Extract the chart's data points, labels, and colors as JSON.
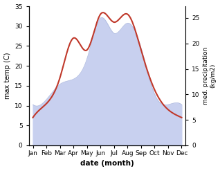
{
  "months": [
    "Jan",
    "Feb",
    "Mar",
    "Apr",
    "May",
    "Jun",
    "Jul",
    "Aug",
    "Sep",
    "Oct",
    "Nov",
    "Dec"
  ],
  "temperature": [
    7,
    10.5,
    17,
    27,
    24,
    33,
    31,
    33,
    24,
    14,
    9,
    7
  ],
  "precipitation": [
    8,
    9,
    12,
    13,
    17,
    25,
    22,
    24,
    19,
    10,
    8,
    8
  ],
  "temp_color": "#c0392b",
  "precip_fill_color": "#c8d0ef",
  "precip_edge_color": "#b0bcdf",
  "ylabel_left": "max temp (C)",
  "ylabel_right": "med. precipitation\n(kg/m2)",
  "xlabel": "date (month)",
  "ylim_left": [
    0,
    35
  ],
  "ylim_right": [
    0,
    27.3
  ],
  "yticks_left": [
    0,
    5,
    10,
    15,
    20,
    25,
    30,
    35
  ],
  "yticks_right": [
    0,
    5,
    10,
    15,
    20,
    25
  ],
  "temp_linewidth": 1.5,
  "figsize": [
    3.18,
    2.47
  ],
  "dpi": 100
}
